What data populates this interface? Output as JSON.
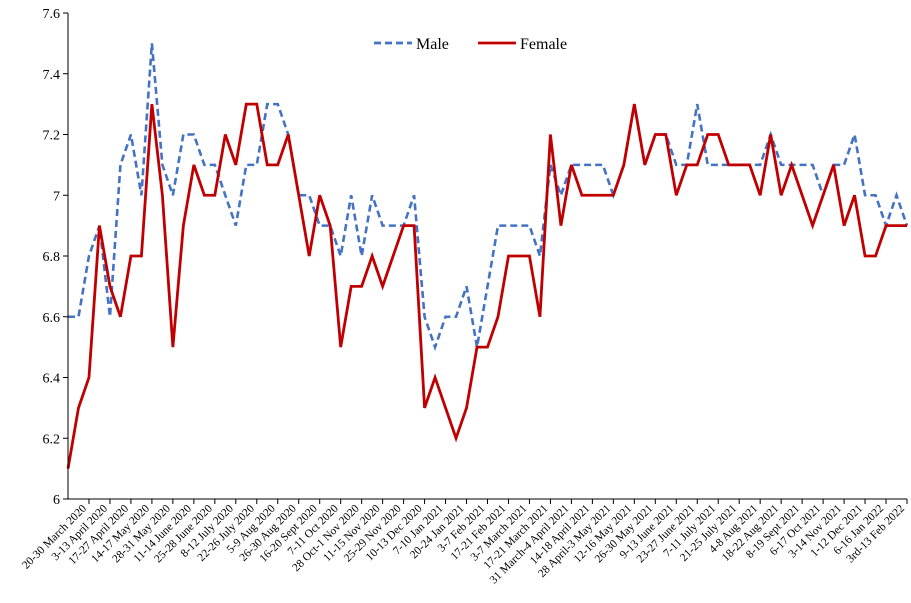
{
  "chart_data": {
    "type": "line",
    "title": "",
    "xlabel": "",
    "ylabel": "",
    "ylim": [
      6,
      7.6
    ],
    "yticks": [
      "6",
      "6.2",
      "6.4",
      "6.6",
      "6.8",
      "7",
      "7.2",
      "7.4",
      "7.6"
    ],
    "grid": false,
    "legend_position": "top-center",
    "x_tick_labels": [
      "20-30 March 2020",
      "3-13 April 2020",
      "17-27 April 2020",
      "14-17 May 2020",
      "28-31 May 2020",
      "11-14 June 2020",
      "25-28 June 2020",
      "8-12 July 2020",
      "22-26 July 2020",
      "5-9 Aug 2020",
      "26-30 Aug 2020",
      "16-20 Sept 2020",
      "7-11 Oct 2020",
      "28 Oct-1 Nov 2020",
      "11-15 Nov 2020",
      "25-29 Nov 2020",
      "10-13 Dec 2020",
      "7-10 Jan 2021",
      "20-24 Jan 2021",
      "3-7 Feb 2021",
      "17-21 Feb 2021",
      "3-7 March 2021",
      "17-21 March 2021",
      "31 March-4 April 2021",
      "14-18 April 2021",
      "28 April-3 May 2021",
      "12-16 May 2021",
      "26-30 May 2021",
      "9-13 June 2021",
      "23-27 June 2021",
      "7-11 July 2021",
      "21-25 July 2021",
      "4-8 Aug 2021",
      "18-22 Aug 2021",
      "8-19 Sept 2021",
      "6-17 Oct 2021",
      "3-14 Nov 2021",
      "1-12 Dec 2021",
      "6-16 Jan 2022",
      "3rd-13 Feb 2022"
    ],
    "series": [
      {
        "name": "Male",
        "color": "#4472C4",
        "dash": "dashed",
        "values": [
          6.6,
          6.6,
          6.8,
          6.9,
          6.6,
          7.1,
          7.2,
          7.0,
          7.5,
          7.1,
          7.0,
          7.2,
          7.2,
          7.1,
          7.1,
          7.0,
          6.9,
          7.1,
          7.1,
          7.3,
          7.3,
          7.2,
          7.0,
          7.0,
          6.9,
          6.9,
          6.8,
          7.0,
          6.8,
          7.0,
          6.9,
          6.9,
          6.9,
          7.0,
          6.6,
          6.5,
          6.6,
          6.6,
          6.7,
          6.5,
          6.7,
          6.9,
          6.9,
          6.9,
          6.9,
          6.8,
          7.1,
          7.0,
          7.1,
          7.1,
          7.1,
          7.1,
          7.0,
          7.1,
          7.3,
          7.1,
          7.2,
          7.2,
          7.1,
          7.1,
          7.3,
          7.1,
          7.1,
          7.1,
          7.1,
          7.1,
          7.1,
          7.2,
          7.1,
          7.1,
          7.1,
          7.1,
          7.0,
          7.1,
          7.1,
          7.2,
          7.0,
          7.0,
          6.9,
          7.0,
          6.9
        ]
      },
      {
        "name": "Female",
        "color": "#C00000",
        "dash": "solid",
        "values": [
          6.1,
          6.3,
          6.4,
          6.9,
          6.7,
          6.6,
          6.8,
          6.8,
          7.3,
          7.0,
          6.5,
          6.9,
          7.1,
          7.0,
          7.0,
          7.2,
          7.1,
          7.3,
          7.3,
          7.1,
          7.1,
          7.2,
          7.0,
          6.8,
          7.0,
          6.9,
          6.5,
          6.7,
          6.7,
          6.8,
          6.7,
          6.8,
          6.9,
          6.9,
          6.3,
          6.4,
          6.3,
          6.2,
          6.3,
          6.5,
          6.5,
          6.6,
          6.8,
          6.8,
          6.8,
          6.6,
          7.2,
          6.9,
          7.1,
          7.0,
          7.0,
          7.0,
          7.0,
          7.1,
          7.3,
          7.1,
          7.2,
          7.2,
          7.0,
          7.1,
          7.1,
          7.2,
          7.2,
          7.1,
          7.1,
          7.1,
          7.0,
          7.2,
          7.0,
          7.1,
          7.0,
          6.9,
          7.0,
          7.1,
          6.9,
          7.0,
          6.8,
          6.8,
          6.9,
          6.9,
          6.9
        ]
      }
    ]
  }
}
